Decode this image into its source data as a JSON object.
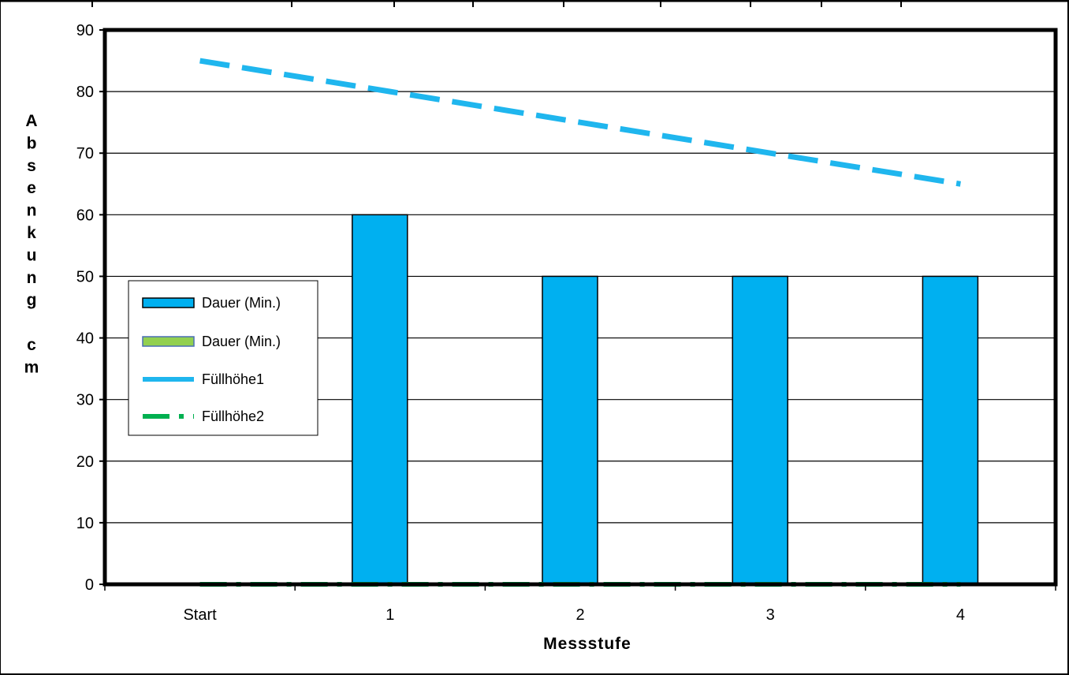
{
  "chart_data": {
    "type": "bar",
    "categories": [
      "Start",
      "1",
      "2",
      "3",
      "4"
    ],
    "xlabel": "Messstufe",
    "ylabel": "Absenkung cm",
    "ylim": [
      0,
      90
    ],
    "ytick_step": 10,
    "grid": true,
    "legend_position": "left",
    "series": [
      {
        "name": "Dauer (Min.)",
        "kind": "bar",
        "color": "#00b0f0",
        "values": [
          0,
          60,
          50,
          50,
          50
        ]
      },
      {
        "name": "Dauer (Min.)",
        "kind": "bar",
        "color": "#92d050",
        "values": [
          0,
          0,
          0,
          0,
          0
        ]
      },
      {
        "name": "Füllhöhe1",
        "kind": "line",
        "color": "#1fb6ee",
        "style": "dashed",
        "values": [
          85,
          80,
          75,
          70,
          65
        ]
      },
      {
        "name": "Füllhöhe2",
        "kind": "line",
        "color": "#00b050",
        "style": "dash-dot",
        "values": [
          0,
          0,
          0,
          0,
          0
        ]
      }
    ]
  }
}
